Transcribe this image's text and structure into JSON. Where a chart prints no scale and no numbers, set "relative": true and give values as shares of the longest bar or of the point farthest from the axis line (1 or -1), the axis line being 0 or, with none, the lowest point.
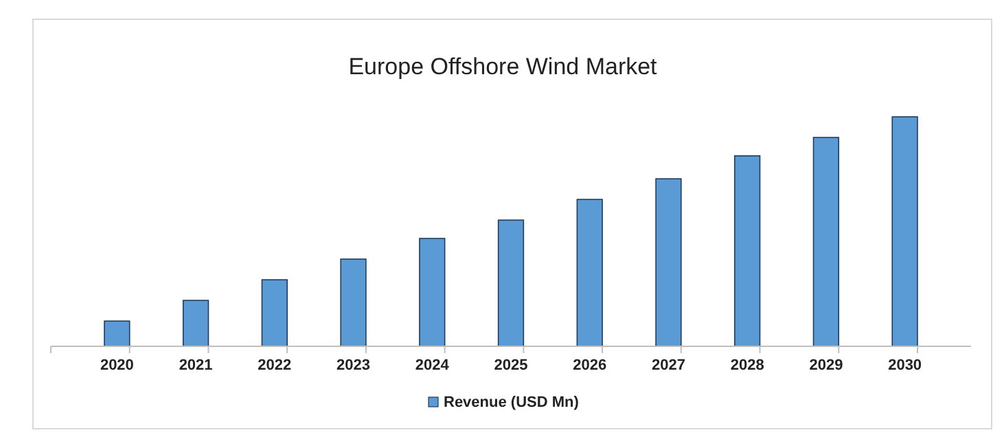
{
  "chart_data": {
    "type": "bar",
    "title": "Europe Offshore Wind Market",
    "categories": [
      "2020",
      "2021",
      "2022",
      "2023",
      "2024",
      "2025",
      "2026",
      "2027",
      "2028",
      "2029",
      "2030"
    ],
    "series": [
      {
        "name": "Revenue (USD Mn)",
        "color": "#5b9bd5",
        "values": [
          0.11,
          0.2,
          0.29,
          0.38,
          0.47,
          0.55,
          0.64,
          0.73,
          0.83,
          0.91,
          1
        ]
      }
    ],
    "relative": true,
    "legend": "bottom"
  }
}
